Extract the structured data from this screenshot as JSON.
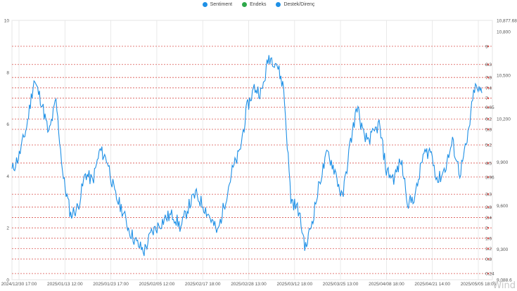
{
  "chart_data": {
    "type": "line",
    "legend": [
      {
        "name": "Sentiment",
        "color": "#1e90e6"
      },
      {
        "name": "Endeks",
        "color": "#2ea84a"
      },
      {
        "name": "Destek/Direnç",
        "color": "#1e90e6"
      }
    ],
    "left_axis": {
      "min": 0,
      "max": 10,
      "ticks": [
        "0",
        "2",
        "4",
        "6",
        "8",
        "10"
      ]
    },
    "right_axis": {
      "min": 9088.6,
      "max": 10877.68,
      "ticks": [
        "9,088.6",
        "9,300",
        "9,600",
        "9,900",
        "10,200",
        "10,500",
        "10,800",
        "10,877.68"
      ]
    },
    "support_resistance_levels": [
      9,
      8.3,
      7.8,
      7.4,
      7,
      6.65,
      6.2,
      5.8,
      5.2,
      4.5,
      3.96,
      3.3,
      2.8,
      2.4,
      2,
      1.6,
      1.2,
      0.8,
      0.24
    ],
    "x_labels": [
      "2024/12/30 17:00",
      "2025/01/13 12:00",
      "2025/01/23 17:00",
      "2025/02/05 12:00",
      "2025/02/17 18:00",
      "2025/02/28 13:00",
      "2025/03/12 18:00",
      "2025/03/25 13:00",
      "2025/04/08 18:00",
      "2025/04/21 14:00",
      "2025/05/05 18:05"
    ],
    "sentiment": [
      4.2,
      4.8,
      5.9,
      7.7,
      6.9,
      5.6,
      6.9,
      3.9,
      2.5,
      2.8,
      4.1,
      3.8,
      5.0,
      4.6,
      3.3,
      2.7,
      1.9,
      1.4,
      1.1,
      1.8,
      2.1,
      2.4,
      2.5,
      2.0,
      2.8,
      3.3,
      2.9,
      2.4,
      1.8,
      3.0,
      4.2,
      4.9,
      6.6,
      7.4,
      7.2,
      8.6,
      8.4,
      7.4,
      3.1,
      2.7,
      1.2,
      2.4,
      3.9,
      4.9,
      4.2,
      3.1,
      5.1,
      6.7,
      5.4,
      5.5,
      6.0,
      4.2,
      3.9,
      4.6,
      2.9,
      3.3,
      4.8,
      5.0,
      3.8,
      4.3,
      5.3,
      4.1,
      5.3,
      7.4,
      7.2
    ]
  }
}
